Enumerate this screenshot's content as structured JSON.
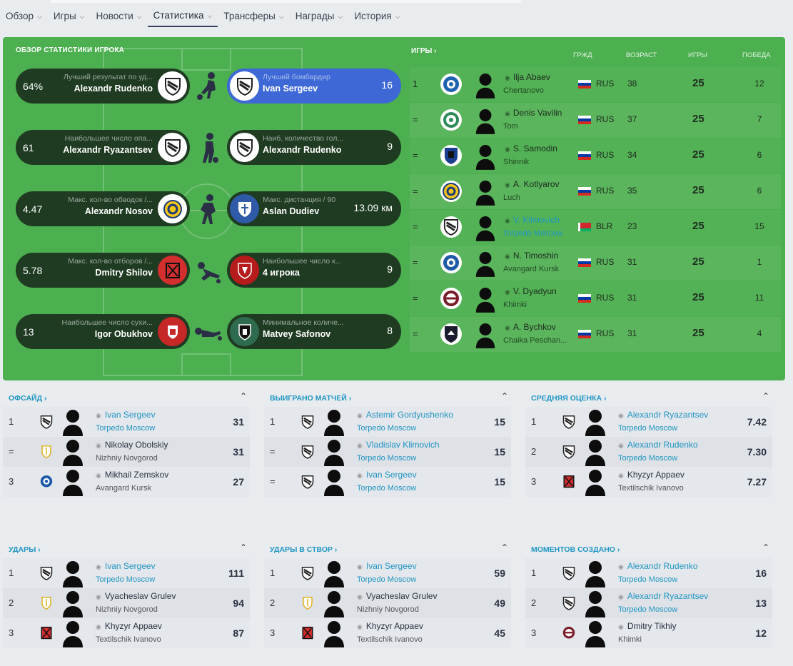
{
  "nav": {
    "tabs": [
      {
        "label": "Обзор"
      },
      {
        "label": "Игры"
      },
      {
        "label": "Новости"
      },
      {
        "label": "Статистика"
      },
      {
        "label": "Трансферы"
      },
      {
        "label": "Награды"
      },
      {
        "label": "История"
      }
    ]
  },
  "overview": {
    "title": "ОБЗОР СТАТИСТИКИ ИГРОКА",
    "left": [
      {
        "value": "64%",
        "sub": "Лучший результат по уд...",
        "name": "Alexandr Rudenko"
      },
      {
        "value": "61",
        "sub": "Наибольшее число опа...",
        "name": "Alexandr Ryazantsev"
      },
      {
        "value": "4.47",
        "sub": "Макс. кол-во обводок /...",
        "name": "Alexandr Nosov"
      },
      {
        "value": "5.78",
        "sub": "Макс. кол-во отборов /...",
        "name": "Dmitry Shilov"
      },
      {
        "value": "13",
        "sub": "Наибольшее число сухи...",
        "name": "Igor Obukhov"
      }
    ],
    "right": [
      {
        "value": "16",
        "sub": "Лучший бомбардир",
        "name": "Ivan Sergeev"
      },
      {
        "value": "9",
        "sub": "Наиб. количество гол...",
        "name": "Alexandr Rudenko"
      },
      {
        "value": "13.09 км",
        "sub": "Макс. дистанция / 90",
        "name": "Aslan Dudiev"
      },
      {
        "value": "9",
        "sub": "Наибольшее число к...",
        "name": "4 игрока"
      },
      {
        "value": "8",
        "sub": "Минимальное количе...",
        "name": "Matvey Safonov"
      }
    ]
  },
  "games": {
    "title": "ИГРЫ",
    "col_citizenship": "ГРЖД",
    "col_age": "ВОЗРАСТ",
    "col_games": "ИГРЫ",
    "col_wins": "ПОБЕДА",
    "rows": [
      {
        "rank": "1",
        "name": "Ilja Abaev",
        "club": "Chertanovo",
        "nat": "RUS",
        "age": "38",
        "games": "25",
        "wins": "12"
      },
      {
        "rank": "=",
        "name": "Denis Vavilin",
        "club": "Tom",
        "nat": "RUS",
        "age": "37",
        "games": "25",
        "wins": "7"
      },
      {
        "rank": "=",
        "name": "S. Samodin",
        "club": "Shinnik",
        "nat": "RUS",
        "age": "34",
        "games": "25",
        "wins": "6"
      },
      {
        "rank": "=",
        "name": "A. Kotlyarov",
        "club": "Luch",
        "nat": "RUS",
        "age": "35",
        "games": "25",
        "wins": "6"
      },
      {
        "rank": "=",
        "name": "V. Klimovich",
        "club": "Torpedo Moscow",
        "nat": "BLR",
        "age": "23",
        "games": "25",
        "wins": "15"
      },
      {
        "rank": "=",
        "name": "N. Timoshin",
        "club": "Avangard Kursk",
        "nat": "RUS",
        "age": "31",
        "games": "25",
        "wins": "1"
      },
      {
        "rank": "=",
        "name": "V. Dyadyun",
        "club": "Khimki",
        "nat": "RUS",
        "age": "31",
        "games": "25",
        "wins": "11"
      },
      {
        "rank": "=",
        "name": "A. Bychkov",
        "club": "Chaika Peschan...",
        "nat": "RUS",
        "age": "31",
        "games": "25",
        "wins": "4"
      }
    ]
  },
  "cards": [
    {
      "title": "ОФСАЙД",
      "rows": [
        {
          "rank": "1",
          "name": "Ivan Sergeev",
          "club": "Torpedo Moscow",
          "value": "31"
        },
        {
          "rank": "=",
          "name": "Nikolay Obolskiy",
          "club": "Nizhniy Novgorod",
          "value": "31"
        },
        {
          "rank": "3",
          "name": "Mikhail Zemskov",
          "club": "Avangard Kursk",
          "value": "27"
        }
      ]
    },
    {
      "title": "ВЫИГРАНО МАТЧЕЙ",
      "rows": [
        {
          "rank": "1",
          "name": "Astemir Gordyushenko",
          "club": "Torpedo Moscow",
          "value": "15"
        },
        {
          "rank": "=",
          "name": "Vladislav Klimovich",
          "club": "Torpedo Moscow",
          "value": "15"
        },
        {
          "rank": "=",
          "name": "Ivan Sergeev",
          "club": "Torpedo Moscow",
          "value": "15"
        }
      ]
    },
    {
      "title": "СРЕДНЯЯ ОЦЕНКА",
      "rows": [
        {
          "rank": "1",
          "name": "Alexandr Ryazantsev",
          "club": "Torpedo Moscow",
          "value": "7.42"
        },
        {
          "rank": "2",
          "name": "Alexandr Rudenko",
          "club": "Torpedo Moscow",
          "value": "7.30"
        },
        {
          "rank": "3",
          "name": "Khyzyr Appaev",
          "club": "Textilschik Ivanovo",
          "value": "7.27"
        }
      ]
    },
    {
      "title": "УДАРЫ",
      "rows": [
        {
          "rank": "1",
          "name": "Ivan Sergeev",
          "club": "Torpedo Moscow",
          "value": "111"
        },
        {
          "rank": "2",
          "name": "Vyacheslav Grulev",
          "club": "Nizhniy Novgorod",
          "value": "94"
        },
        {
          "rank": "3",
          "name": "Khyzyr Appaev",
          "club": "Textilschik Ivanovo",
          "value": "87"
        }
      ]
    },
    {
      "title": "УДАРЫ В СТВОР",
      "rows": [
        {
          "rank": "1",
          "name": "Ivan Sergeev",
          "club": "Torpedo Moscow",
          "value": "59"
        },
        {
          "rank": "2",
          "name": "Vyacheslav Grulev",
          "club": "Nizhniy Novgorod",
          "value": "49"
        },
        {
          "rank": "3",
          "name": "Khyzyr Appaev",
          "club": "Textilschik Ivanovo",
          "value": "45"
        }
      ]
    },
    {
      "title": "МОМЕНТОВ СОЗДАНО",
      "rows": [
        {
          "rank": "1",
          "name": "Alexandr Rudenko",
          "club": "Torpedo Moscow",
          "value": "16"
        },
        {
          "rank": "2",
          "name": "Alexandr Ryazantsev",
          "club": "Torpedo Moscow",
          "value": "13"
        },
        {
          "rank": "3",
          "name": "Dmitry Tikhiy",
          "club": "Khimki",
          "value": "12"
        }
      ]
    }
  ],
  "colors": {
    "panel_green": "#4caf50",
    "pill_dark": "#1f3b22",
    "pill_blue": "#3d68d6",
    "link_blue": "#2196c4"
  }
}
